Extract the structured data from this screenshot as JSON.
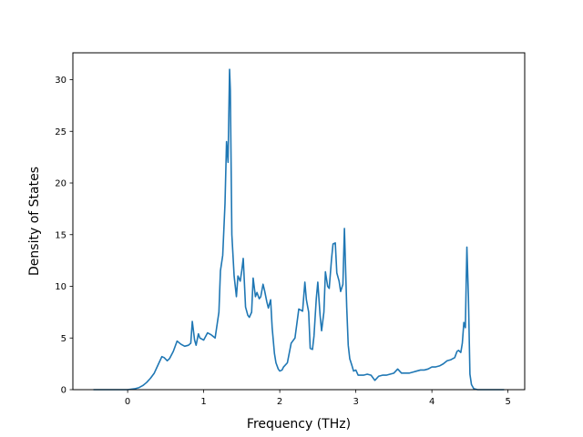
{
  "chart_data": {
    "type": "line",
    "title": "",
    "xlabel": "Frequency (THz)",
    "ylabel": "Density of States",
    "xlim": [
      -0.72,
      5.22
    ],
    "ylim": [
      0,
      32.6
    ],
    "xticks": [
      0,
      1,
      2,
      3,
      4,
      5
    ],
    "yticks": [
      0,
      5,
      10,
      15,
      20,
      25,
      30
    ],
    "grid": false,
    "legend": "none",
    "series": [
      {
        "color": "#1f77b4",
        "x": [
          -0.45,
          -0.2,
          0.0,
          0.1,
          0.15,
          0.2,
          0.25,
          0.3,
          0.35,
          0.4,
          0.45,
          0.48,
          0.52,
          0.55,
          0.6,
          0.65,
          0.7,
          0.75,
          0.8,
          0.83,
          0.85,
          0.88,
          0.9,
          0.93,
          0.95,
          1.0,
          1.05,
          1.1,
          1.15,
          1.18,
          1.2,
          1.22,
          1.25,
          1.28,
          1.3,
          1.32,
          1.34,
          1.35,
          1.37,
          1.4,
          1.43,
          1.45,
          1.48,
          1.5,
          1.52,
          1.55,
          1.58,
          1.6,
          1.63,
          1.65,
          1.68,
          1.7,
          1.73,
          1.75,
          1.78,
          1.8,
          1.83,
          1.85,
          1.88,
          1.9,
          1.93,
          1.95,
          1.98,
          2.0,
          2.03,
          2.05,
          2.1,
          2.15,
          2.2,
          2.25,
          2.3,
          2.33,
          2.35,
          2.38,
          2.4,
          2.43,
          2.45,
          2.48,
          2.5,
          2.53,
          2.55,
          2.58,
          2.6,
          2.63,
          2.65,
          2.68,
          2.7,
          2.73,
          2.75,
          2.78,
          2.8,
          2.83,
          2.85,
          2.88,
          2.9,
          2.92,
          2.95,
          2.97,
          3.0,
          3.03,
          3.05,
          3.08,
          3.1,
          3.15,
          3.2,
          3.25,
          3.3,
          3.35,
          3.4,
          3.45,
          3.5,
          3.55,
          3.6,
          3.65,
          3.7,
          3.75,
          3.8,
          3.85,
          3.9,
          3.95,
          4.0,
          4.05,
          4.1,
          4.15,
          4.2,
          4.25,
          4.3,
          4.33,
          4.35,
          4.38,
          4.4,
          4.42,
          4.44,
          4.45,
          4.46,
          4.48,
          4.5,
          4.52,
          4.55,
          4.6,
          4.7,
          4.8,
          4.9,
          4.95
        ],
        "y": [
          0.0,
          0.0,
          0.0,
          0.1,
          0.2,
          0.4,
          0.7,
          1.1,
          1.6,
          2.4,
          3.2,
          3.1,
          2.8,
          3.0,
          3.7,
          4.7,
          4.4,
          4.2,
          4.3,
          4.5,
          6.6,
          4.8,
          4.3,
          5.4,
          5.0,
          4.8,
          5.5,
          5.3,
          5.0,
          6.5,
          7.5,
          11.5,
          13.0,
          18.0,
          24.0,
          22.0,
          31.0,
          29.0,
          15.0,
          11.0,
          9.0,
          11.0,
          10.5,
          11.5,
          12.7,
          8.0,
          7.2,
          7.0,
          7.5,
          10.8,
          9.0,
          9.4,
          8.8,
          9.0,
          10.2,
          9.6,
          8.5,
          7.9,
          8.7,
          6.0,
          3.5,
          2.6,
          2.0,
          1.8,
          1.9,
          2.2,
          2.6,
          4.5,
          5.0,
          7.8,
          7.6,
          10.4,
          8.7,
          7.5,
          4.0,
          3.9,
          5.2,
          8.8,
          10.4,
          7.2,
          5.7,
          7.5,
          11.4,
          10.0,
          9.8,
          12.6,
          14.1,
          14.2,
          11.3,
          10.5,
          9.5,
          10.2,
          15.6,
          8.0,
          4.3,
          3.0,
          2.3,
          1.8,
          1.9,
          1.4,
          1.4,
          1.4,
          1.4,
          1.5,
          1.4,
          0.9,
          1.3,
          1.4,
          1.4,
          1.5,
          1.6,
          2.0,
          1.6,
          1.6,
          1.6,
          1.7,
          1.8,
          1.9,
          1.9,
          2.0,
          2.2,
          2.2,
          2.3,
          2.5,
          2.8,
          2.9,
          3.1,
          3.7,
          3.8,
          3.6,
          4.5,
          6.5,
          6.0,
          10.0,
          13.8,
          9.0,
          1.5,
          0.5,
          0.1,
          0.0,
          0.0,
          0.0,
          0.0,
          0.0
        ]
      }
    ]
  }
}
